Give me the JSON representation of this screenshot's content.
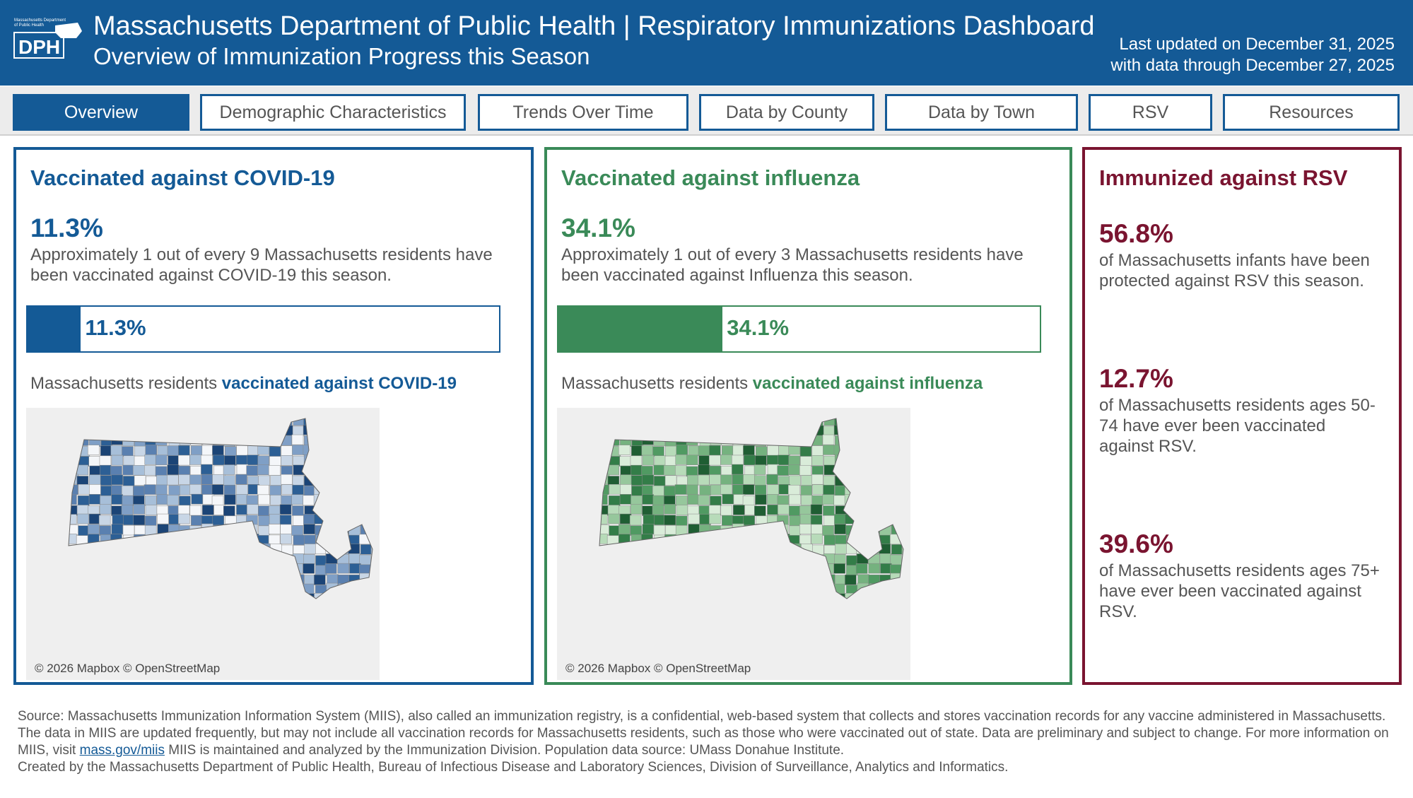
{
  "header": {
    "logo_text": "DPH",
    "logo_caption": "Massachusetts Department of Public Health",
    "title": "Massachusetts Department of Public Health | Respiratory Immunizations Dashboard",
    "subtitle": "Overview of Immunization Progress this Season",
    "updated": "Last updated on December 31, 2025",
    "data_through": "with data through December 27, 2025"
  },
  "tabs": [
    "Overview",
    "Demographic Characteristics",
    "Trends Over Time",
    "Data by County",
    "Data by Town",
    "RSV",
    "Resources"
  ],
  "covid": {
    "title": "Vaccinated against COVID-19",
    "pct": "11.3%",
    "value": 11.3,
    "desc": "Approximately 1 out of every 9 Massachusetts residents have been vaccinated against COVID-19 this season.",
    "bar_label": "11.3%",
    "map_label_a": "Massachusetts residents ",
    "map_label_b": "vaccinated against COVID-19",
    "credit": "© 2026 Mapbox © OpenStreetMap",
    "color": "#145a96"
  },
  "flu": {
    "title": "Vaccinated against influenza",
    "pct": "34.1%",
    "value": 34.1,
    "desc": "Approximately 1 out of every 3 Massachusetts residents have been vaccinated against Influenza this season.",
    "bar_label": "34.1%",
    "map_label_a": "Massachusetts residents ",
    "map_label_b": "vaccinated against influenza",
    "credit": "© 2026 Mapbox © OpenStreetMap",
    "color": "#3a8a58"
  },
  "rsv": {
    "title": "Immunized against RSV",
    "color": "#7a1430",
    "stats": [
      {
        "pct": "56.8%",
        "desc": "of Massachusetts infants have been protected against RSV this season."
      },
      {
        "pct": "12.7%",
        "desc": "of Massachusetts residents ages 50-74 have ever been vaccinated against RSV."
      },
      {
        "pct": "39.6%",
        "desc": "of Massachusetts residents ages 75+ have ever been vaccinated against RSV."
      }
    ]
  },
  "footer": {
    "p1": "Source: Massachusetts Immunization Information System (MIIS), also called an immunization registry, is a confidential, web-based system that collects and stores vaccination records for any vaccine administered in Massachusetts. The data in MIIS are updated frequently, but may not include all vaccination records for Massachusetts residents, such as those who were vaccinated out of state. Data are preliminary and subject to change. For more information on MIIS, visit ",
    "link": "mass.gov/miis",
    "p2": " MIIS is maintained and analyzed by the Immunization Division. Population data source: UMass Donahue Institute.",
    "p3": "Created by the Massachusetts Department of Public Health, Bureau of Infectious Disease and Laboratory Sciences, Division of Surveillance, Analytics and Informatics."
  }
}
